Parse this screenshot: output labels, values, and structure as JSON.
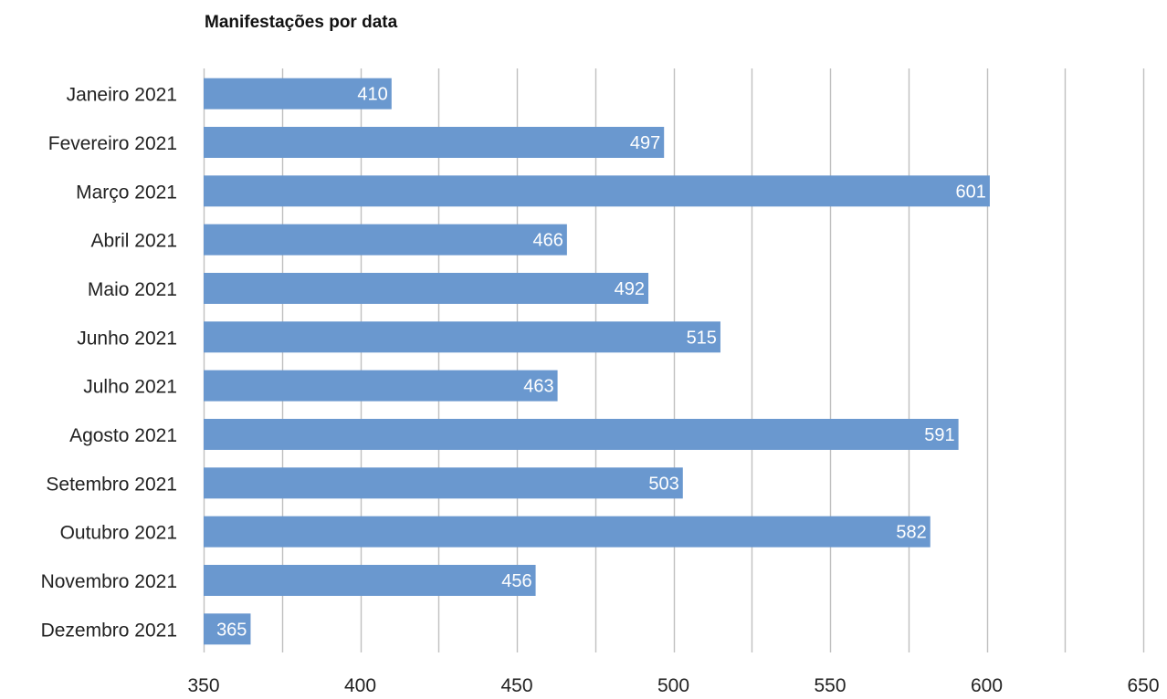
{
  "chart_data": {
    "type": "bar",
    "orientation": "horizontal",
    "title": "Manifestações por data",
    "xlabel": "",
    "ylabel": "",
    "categories": [
      "Janeiro 2021",
      "Fevereiro 2021",
      "Março 2021",
      "Abril 2021",
      "Maio 2021",
      "Junho 2021",
      "Julho 2021",
      "Agosto 2021",
      "Setembro 2021",
      "Outubro 2021",
      "Novembro 2021",
      "Dezembro 2021"
    ],
    "values": [
      410,
      497,
      601,
      466,
      492,
      515,
      463,
      591,
      503,
      582,
      456,
      365
    ],
    "xlim": [
      350,
      650
    ],
    "ticks": [
      350,
      400,
      450,
      500,
      550,
      600,
      650
    ],
    "minor_gridlines": true,
    "grid": true,
    "legend": "none",
    "data_labels": "inside-end",
    "bar_color": "#6a98cf",
    "grid_color": "#c0c0c0"
  }
}
